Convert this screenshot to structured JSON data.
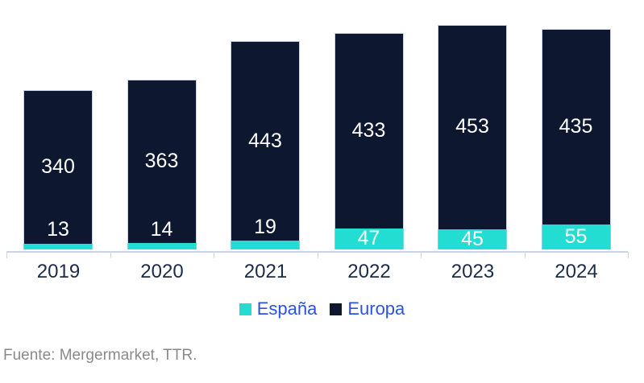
{
  "chart_data": {
    "type": "bar",
    "stacked": true,
    "orientation": "vertical",
    "categories": [
      "2019",
      "2020",
      "2021",
      "2022",
      "2023",
      "2024"
    ],
    "series": [
      {
        "name": "España",
        "color": "#24ddd2",
        "values": [
          13,
          14,
          19,
          47,
          45,
          55
        ]
      },
      {
        "name": "Europa",
        "color": "#0d1830",
        "values": [
          340,
          363,
          443,
          433,
          453,
          435
        ]
      }
    ],
    "totals": [
      353,
      377,
      462,
      480,
      498,
      490
    ],
    "value_labels": "inside-white",
    "legend_position": "bottom",
    "grid": false,
    "y_axis_visible": false,
    "ylim": [
      0,
      550
    ]
  },
  "legend": {
    "items": [
      {
        "label": "España",
        "color": "#24ddd2"
      },
      {
        "label": "Europa",
        "color": "#0d1830"
      }
    ]
  },
  "source": {
    "label": "Fuente: Mergermarket, TTR."
  },
  "colors": {
    "espana": "#24ddd2",
    "europa": "#0d1830",
    "legend_text": "#2b52e2",
    "axis_line": "#ccd5ea",
    "category_text": "#1d2b4a",
    "value_label": "#ffffff",
    "source_text": "#8a8a8a",
    "background": "#ffffff"
  }
}
